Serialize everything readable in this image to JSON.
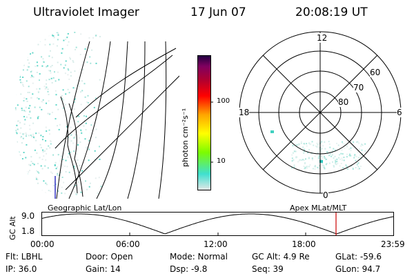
{
  "header": {
    "instrument": "Ultraviolet Imager",
    "date": "17 Jun 07",
    "time": "20:08:19 UT"
  },
  "left_panel": {
    "caption": "Geographic Lat/Lon"
  },
  "right_panel": {
    "caption": "Apex MLat/MLT",
    "mlt_labels": [
      "12",
      "18",
      "6",
      "0"
    ],
    "lat_labels": [
      "60",
      "70",
      "80"
    ]
  },
  "colorbar": {
    "label": "photon cm⁻²s⁻¹",
    "ticks": [
      "100",
      "10"
    ],
    "scale": "log",
    "colors": [
      "#e6e6e6",
      "#40e0d0",
      "#7cfc00",
      "#ffff00",
      "#ffa500",
      "#ff0000",
      "#b00030",
      "#800060",
      "#200040"
    ]
  },
  "altitude_plot": {
    "ylabel": "GC Alt",
    "y_ticks": [
      "9.0",
      "1.8"
    ],
    "x_ticks": [
      "00:00",
      "06:00",
      "12:00",
      "18:00",
      "23:59"
    ],
    "marker_color": "#cc0000"
  },
  "info": {
    "flt": "Flt: LBHL",
    "ip": "IP: 36.0",
    "door": "Door: Open",
    "gain": "Gain: 14",
    "mode": "Mode: Normal",
    "dsp": "Dsp:    -9.8",
    "gcalt": "GC Alt: 4.9 Re",
    "seq": "Seq: 39",
    "glat": "GLat: -59.6",
    "glon": "GLon:  94.7"
  }
}
